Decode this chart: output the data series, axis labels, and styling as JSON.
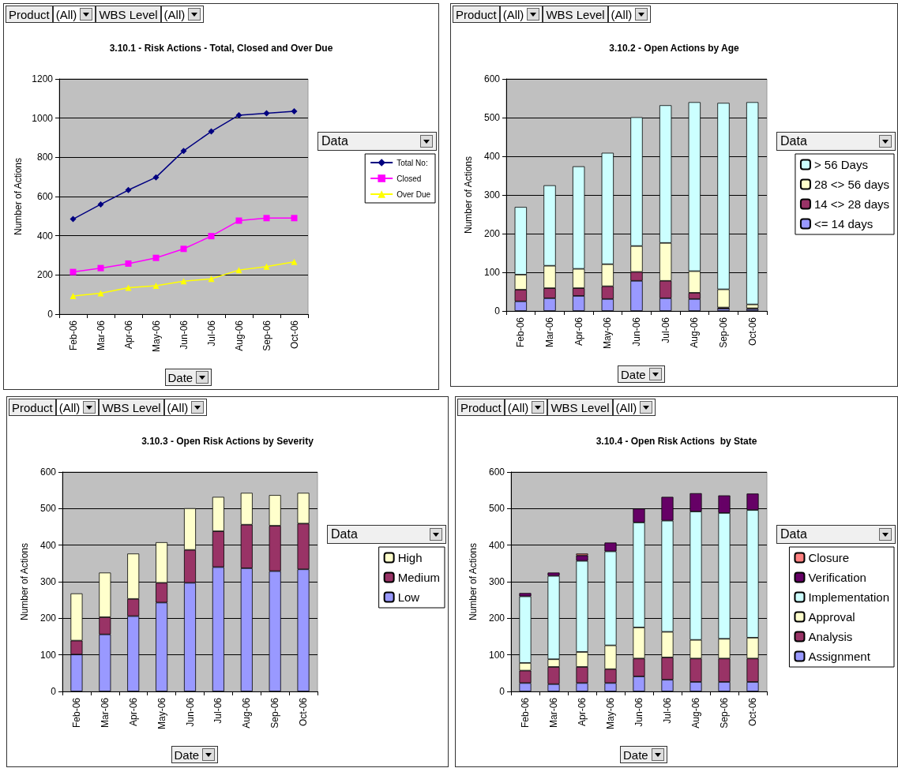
{
  "chart_data": [
    {
      "type": "line",
      "title": "3.10.1 - Risk Actions - Total, Closed and Over Due",
      "xlabel": "Date",
      "ylabel": "Number of Actions",
      "legend_title": "Data",
      "annotations": [
        "Product",
        "(All)",
        "WBS Level",
        "(All)"
      ],
      "categories": [
        "Feb-06",
        "Mar-06",
        "Apr-06",
        "May-06",
        "Jun-06",
        "Jul-06",
        "Aug-06",
        "Sep-06",
        "Oct-06"
      ],
      "series": [
        {
          "name": "Total No:",
          "color": "#000080",
          "marker": "diamond",
          "values": [
            485,
            560,
            633,
            698,
            833,
            932,
            1015,
            1025,
            1035
          ]
        },
        {
          "name": "Closed",
          "color": "#ff00ff",
          "marker": "square",
          "values": [
            215,
            235,
            258,
            287,
            333,
            398,
            477,
            490,
            490
          ]
        },
        {
          "name": "Over Due",
          "color": "#ffff00",
          "marker": "triangle",
          "values": [
            93,
            107,
            135,
            145,
            168,
            180,
            225,
            243,
            267
          ]
        }
      ],
      "ylim": [
        0,
        1200
      ],
      "yticks": [
        0,
        200,
        400,
        600,
        800,
        1000,
        1200
      ],
      "grid": "y",
      "legend": "right"
    },
    {
      "type": "bar",
      "stacked": true,
      "title": "3.10.2 - Open Actions by Age",
      "xlabel": "Date",
      "ylabel": "Number of Actions",
      "legend_title": "Data",
      "annotations": [
        "Product",
        "(All)",
        "WBS Level",
        "(All)"
      ],
      "categories": [
        "Feb-06",
        "Mar-06",
        "Apr-06",
        "May-06",
        "Jun-06",
        "Jul-06",
        "Aug-06",
        "Sep-06",
        "Oct-06"
      ],
      "series": [
        {
          "name": "<= 14 days",
          "color": "#9999ff",
          "values": [
            25,
            33,
            39,
            31,
            78,
            33,
            31,
            6,
            5
          ]
        },
        {
          "name": "14 <> 28 days",
          "color": "#993366",
          "values": [
            30,
            26,
            20,
            33,
            23,
            45,
            16,
            3,
            2
          ]
        },
        {
          "name": "28 <> 56 days",
          "color": "#ffffcc",
          "values": [
            39,
            58,
            50,
            57,
            67,
            98,
            56,
            47,
            10
          ]
        },
        {
          "name": "> 56 Days",
          "color": "#ccffff",
          "values": [
            175,
            208,
            265,
            288,
            333,
            356,
            437,
            482,
            523
          ]
        }
      ],
      "ylim": [
        0,
        600
      ],
      "yticks": [
        0,
        100,
        200,
        300,
        400,
        500,
        600
      ],
      "grid": "y",
      "legend": "right"
    },
    {
      "type": "bar",
      "stacked": true,
      "title": "3.10.3 - Open Risk Actions by Severity",
      "xlabel": "Date",
      "ylabel": "Number of Actions",
      "legend_title": "Data",
      "annotations": [
        "Product",
        "(All)",
        "WBS Level",
        "(All)"
      ],
      "categories": [
        "Feb-06",
        "Mar-06",
        "Apr-06",
        "May-06",
        "Jun-06",
        "Jul-06",
        "Aug-06",
        "Sep-06",
        "Oct-06"
      ],
      "series": [
        {
          "name": "Low",
          "color": "#9999ff",
          "values": [
            101,
            156,
            206,
            243,
            297,
            340,
            337,
            329,
            334
          ]
        },
        {
          "name": "Medium",
          "color": "#993366",
          "values": [
            38,
            47,
            47,
            54,
            90,
            98,
            119,
            124,
            125
          ]
        },
        {
          "name": "High",
          "color": "#ffffcc",
          "values": [
            129,
            122,
            124,
            111,
            114,
            94,
            87,
            84,
            84
          ]
        }
      ],
      "ylim": [
        0,
        600
      ],
      "yticks": [
        0,
        100,
        200,
        300,
        400,
        500,
        600
      ],
      "grid": "y",
      "legend": "right"
    },
    {
      "type": "bar",
      "stacked": true,
      "title": "3.10.4 - Open Risk Actions  by State",
      "xlabel": "Date",
      "ylabel": "Number of Actions",
      "legend_title": "Data",
      "annotations": [
        "Product",
        "(All)",
        "WBS Level",
        "(All)"
      ],
      "categories": [
        "Feb-06",
        "Mar-06",
        "Apr-06",
        "May-06",
        "Jun-06",
        "Jul-06",
        "Aug-06",
        "Sep-06",
        "Oct-06"
      ],
      "series": [
        {
          "name": "Assignment",
          "color": "#9999ff",
          "values": [
            23,
            20,
            23,
            23,
            41,
            32,
            26,
            26,
            26
          ]
        },
        {
          "name": "Analysis",
          "color": "#993366",
          "values": [
            34,
            47,
            44,
            38,
            49,
            61,
            64,
            64,
            64
          ]
        },
        {
          "name": "Approval",
          "color": "#ffffcc",
          "values": [
            21,
            21,
            41,
            65,
            85,
            70,
            51,
            54,
            57
          ]
        },
        {
          "name": "Implementation",
          "color": "#ccffff",
          "values": [
            182,
            228,
            249,
            257,
            287,
            304,
            351,
            344,
            349
          ]
        },
        {
          "name": "Verification",
          "color": "#660066",
          "values": [
            9,
            9,
            15,
            24,
            38,
            65,
            50,
            48,
            45
          ]
        },
        {
          "name": "Closure",
          "color": "#ff8080",
          "values": [
            0,
            0,
            5,
            0,
            0,
            0,
            0,
            0,
            0
          ]
        }
      ],
      "ylim": [
        0,
        600
      ],
      "yticks": [
        0,
        100,
        200,
        300,
        400,
        500,
        600
      ],
      "grid": "y",
      "legend": "right"
    }
  ]
}
